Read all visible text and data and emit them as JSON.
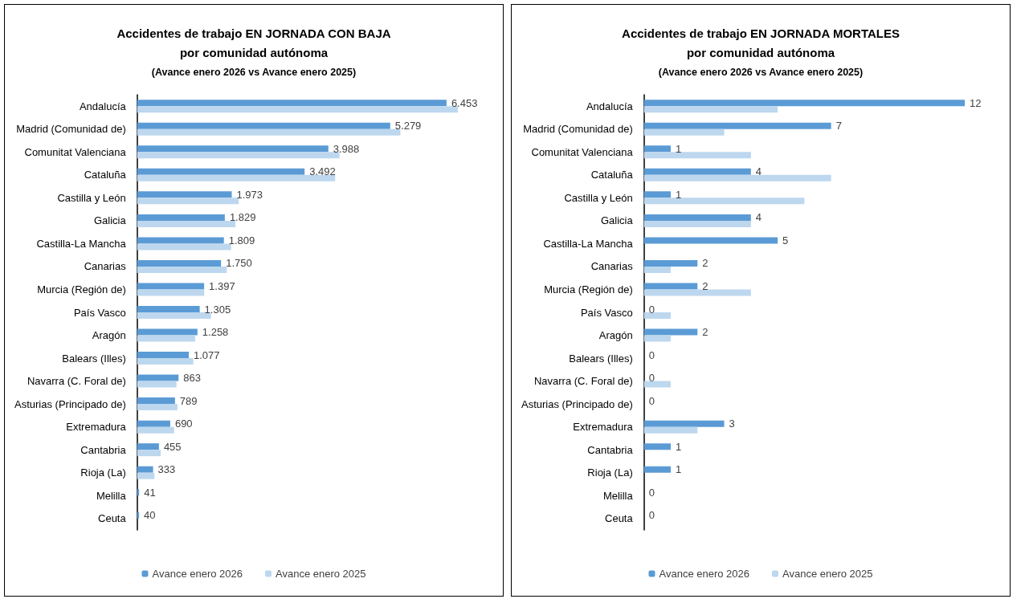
{
  "chart_data": [
    {
      "type": "bar",
      "orientation": "horizontal",
      "title": "Accidentes de trabajo EN JORNADA CON BAJA\npor comunidad autónoma",
      "subtitle": "(Avance enero 2026 vs Avance enero 2025)",
      "legend": "bottom",
      "categories": [
        "Andalucía",
        "Madrid (Comunidad de)",
        "Comunitat Valenciana",
        "Cataluña",
        "Castilla y León",
        "Galicia",
        "Castilla-La Mancha",
        "Canarias",
        "Murcia (Región de)",
        "País Vasco",
        "Aragón",
        "Balears (Illes)",
        "Navarra (C. Foral de)",
        "Asturias (Principado de)",
        "Extremadura",
        "Cantabria",
        "Rioja (La)",
        "Melilla",
        "Ceuta"
      ],
      "series": [
        {
          "name": "Avance enero 2026",
          "color": "#5b9bd5",
          "values": [
            6453,
            5279,
            3988,
            3492,
            1973,
            1829,
            1809,
            1750,
            1397,
            1305,
            1258,
            1077,
            863,
            789,
            690,
            455,
            333,
            41,
            40
          ],
          "value_labels": [
            "6.453",
            "5.279",
            "3.988",
            "3.492",
            "1.973",
            "1.829",
            "1.809",
            "1.750",
            "1.397",
            "1.305",
            "1.258",
            "1.077",
            "863",
            "789",
            "690",
            "455",
            "333",
            "41",
            "40"
          ]
        },
        {
          "name": "Avance enero 2025",
          "color": "#bdd7ee",
          "values": [
            6690,
            5490,
            4220,
            4130,
            2120,
            2050,
            1960,
            1870,
            1400,
            1540,
            1210,
            1170,
            820,
            840,
            770,
            490,
            360,
            null,
            null
          ]
        }
      ]
    },
    {
      "type": "bar",
      "orientation": "horizontal",
      "title": "Accidentes de trabajo EN JORNADA MORTALES\npor comunidad autónoma",
      "subtitle": "(Avance enero 2026 vs Avance enero 2025)",
      "legend": "bottom",
      "categories": [
        "Andalucía",
        "Madrid (Comunidad de)",
        "Comunitat Valenciana",
        "Cataluña",
        "Castilla y León",
        "Galicia",
        "Castilla-La Mancha",
        "Canarias",
        "Murcia (Región de)",
        "País Vasco",
        "Aragón",
        "Balears (Illes)",
        "Navarra (C. Foral de)",
        "Asturias (Principado de)",
        "Extremadura",
        "Cantabria",
        "Rioja (La)",
        "Melilla",
        "Ceuta"
      ],
      "series": [
        {
          "name": "Avance enero 2026",
          "color": "#5b9bd5",
          "values": [
            12,
            7,
            1,
            4,
            1,
            4,
            5,
            2,
            2,
            0,
            2,
            0,
            0,
            0,
            3,
            1,
            1,
            0,
            0
          ],
          "value_labels": [
            "12",
            "7",
            "1",
            "4",
            "1",
            "4",
            "5",
            "2",
            "2",
            "0",
            "2",
            "0",
            "0",
            "0",
            "3",
            "1",
            "1",
            "0",
            "0"
          ]
        },
        {
          "name": "Avance enero 2025",
          "color": "#bdd7ee",
          "values": [
            5,
            3,
            4,
            7,
            6,
            4,
            0,
            1,
            4,
            1,
            1,
            0,
            1,
            0,
            2,
            0,
            0,
            0,
            0
          ]
        }
      ]
    }
  ]
}
